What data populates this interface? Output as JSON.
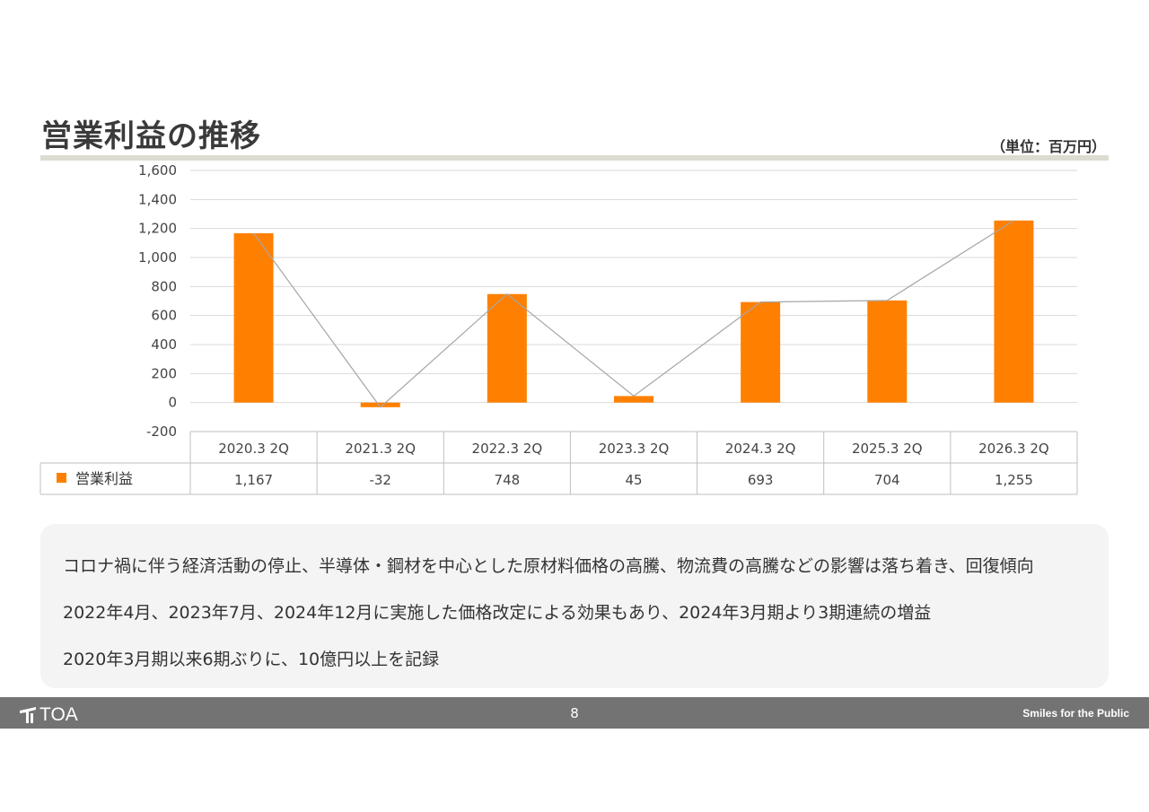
{
  "page": {
    "title": "営業利益の推移",
    "unit": "（単位：百万円）",
    "page_number": "8"
  },
  "chart_data": {
    "type": "bar",
    "title": "",
    "categories": [
      "2020.3 2Q",
      "2021.3 2Q",
      "2022.3 2Q",
      "2023.3 2Q",
      "2024.3 2Q",
      "2025.3 2Q",
      "2026.3 2Q"
    ],
    "series": [
      {
        "name": "営業利益",
        "values": [
          1167,
          -32,
          748,
          45,
          693,
          704,
          1255
        ],
        "color": "#ff8000"
      }
    ],
    "value_labels": [
      "1,167",
      "-32",
      "748",
      "45",
      "693",
      "704",
      "1,255"
    ],
    "overlay_line": {
      "connects": "bar_tops",
      "color": "#a6a6a6"
    },
    "ylim": [
      -200,
      1600
    ],
    "yticks": [
      -200,
      0,
      200,
      400,
      600,
      800,
      1000,
      1200,
      1400,
      1600
    ],
    "ytick_labels": [
      "-200",
      "0",
      "200",
      "400",
      "600",
      "800",
      "1,000",
      "1,200",
      "1,400",
      "1,600"
    ],
    "grid": true,
    "legend": "data-table"
  },
  "notes": [
    "コロナ禍に伴う経済活動の停止、半導体・鋼材を中心とした原材料価格の高騰、物流費の高騰などの影響は落ち着き、回復傾向",
    "2022年4月、2023年7月、2024年12月に実施した価格改定による効果もあり、2024年3月期より3期連続の増益",
    "2020年3月期以来6期ぶりに、10億円以上を記録"
  ],
  "footer": {
    "logo_text": "TOA",
    "logo_icon": "toa-logo-icon",
    "tagline": "Smiles for the Public"
  },
  "colors": {
    "bar": "#ff8000",
    "grid": "#d9d9d9",
    "line": "#a6a6a6",
    "footer": "#737373",
    "note_bg": "#f4f4f4"
  }
}
